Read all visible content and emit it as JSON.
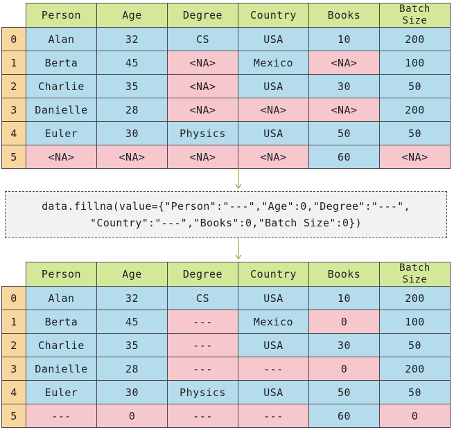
{
  "columns": [
    "Person",
    "Age",
    "Degree",
    "Country",
    "Books",
    "Batch Size"
  ],
  "batch_header_lines": [
    "Batch",
    "Size"
  ],
  "before": {
    "rows": [
      {
        "index": "0",
        "cells": [
          "Alan",
          "32",
          "CS",
          "USA",
          "10",
          "200"
        ],
        "missing": [
          false,
          false,
          false,
          false,
          false,
          false
        ]
      },
      {
        "index": "1",
        "cells": [
          "Berta",
          "45",
          "<NA>",
          "Mexico",
          "<NA>",
          "100"
        ],
        "missing": [
          false,
          false,
          true,
          false,
          true,
          false
        ]
      },
      {
        "index": "2",
        "cells": [
          "Charlie",
          "35",
          "<NA>",
          "USA",
          "30",
          "50"
        ],
        "missing": [
          false,
          false,
          true,
          false,
          false,
          false
        ]
      },
      {
        "index": "3",
        "cells": [
          "Danielle",
          "28",
          "<NA>",
          "<NA>",
          "<NA>",
          "200"
        ],
        "missing": [
          false,
          false,
          true,
          true,
          true,
          false
        ]
      },
      {
        "index": "4",
        "cells": [
          "Euler",
          "30",
          "Physics",
          "USA",
          "50",
          "50"
        ],
        "missing": [
          false,
          false,
          false,
          false,
          false,
          false
        ]
      },
      {
        "index": "5",
        "cells": [
          "<NA>",
          "<NA>",
          "<NA>",
          "<NA>",
          "60",
          "<NA>"
        ],
        "missing": [
          true,
          true,
          true,
          true,
          false,
          true
        ]
      }
    ]
  },
  "code": {
    "line1": "data.fillna(value={\"Person\":\"---\",\"Age\":0,\"Degree\":\"---\",",
    "line2": "\"Country\":\"---\",\"Books\":0,\"Batch Size\":0})"
  },
  "after": {
    "rows": [
      {
        "index": "0",
        "cells": [
          "Alan",
          "32",
          "CS",
          "USA",
          "10",
          "200"
        ],
        "missing": [
          false,
          false,
          false,
          false,
          false,
          false
        ]
      },
      {
        "index": "1",
        "cells": [
          "Berta",
          "45",
          "---",
          "Mexico",
          "0",
          "100"
        ],
        "missing": [
          false,
          false,
          true,
          false,
          true,
          false
        ]
      },
      {
        "index": "2",
        "cells": [
          "Charlie",
          "35",
          "---",
          "USA",
          "30",
          "50"
        ],
        "missing": [
          false,
          false,
          true,
          false,
          false,
          false
        ]
      },
      {
        "index": "3",
        "cells": [
          "Danielle",
          "28",
          "---",
          "---",
          "0",
          "200"
        ],
        "missing": [
          false,
          false,
          true,
          true,
          true,
          false
        ]
      },
      {
        "index": "4",
        "cells": [
          "Euler",
          "30",
          "Physics",
          "USA",
          "50",
          "50"
        ],
        "missing": [
          false,
          false,
          false,
          false,
          false,
          false
        ]
      },
      {
        "index": "5",
        "cells": [
          "---",
          "0",
          "---",
          "---",
          "60",
          "0"
        ],
        "missing": [
          true,
          true,
          true,
          true,
          false,
          true
        ]
      }
    ]
  },
  "colors": {
    "header": "#d4e89a",
    "index": "#f8d6a0",
    "present": "#b5dcec",
    "missing": "#f6c8cd",
    "code_bg": "#f2f2f2",
    "connector": "#a8a040"
  }
}
